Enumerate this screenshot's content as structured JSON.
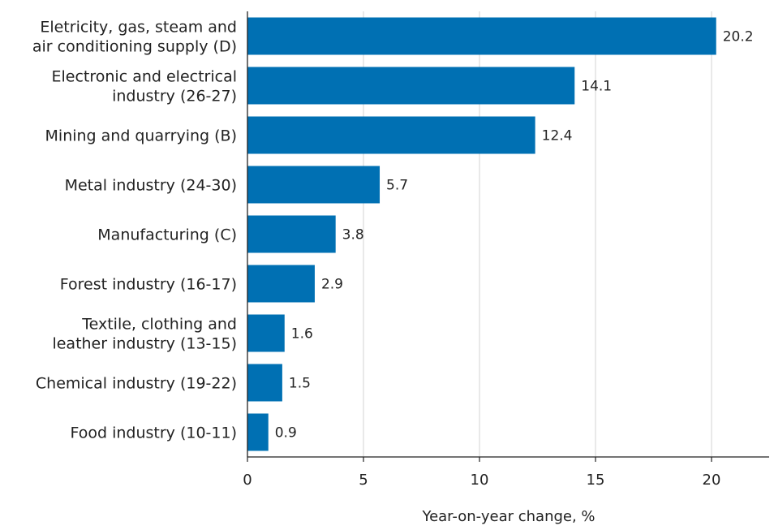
{
  "chart_data": {
    "type": "bar",
    "orientation": "horizontal",
    "categories": [
      [
        "Eletricity, gas, steam and",
        "air conditioning supply (D)"
      ],
      [
        "Electronic and electrical",
        "industry (26-27)"
      ],
      [
        "Mining and quarrying (B)"
      ],
      [
        "Metal industry (24-30)"
      ],
      [
        "Manufacturing (C)"
      ],
      [
        "Forest industry (16-17)"
      ],
      [
        "Textile, clothing and",
        "leather industry (13-15)"
      ],
      [
        "Chemical industry (19-22)"
      ],
      [
        "Food industry (10-11)"
      ]
    ],
    "values": [
      20.2,
      14.1,
      12.4,
      5.7,
      3.8,
      2.9,
      1.6,
      1.5,
      0.9
    ],
    "value_labels": [
      "20.2",
      "14.1",
      "12.4",
      "5.7",
      "3.8",
      "2.9",
      "1.6",
      "1.5",
      "0.9"
    ],
    "xlabel": "Year-on-year change, %",
    "ylabel": "",
    "title": "",
    "xlim": [
      0,
      22.5
    ],
    "xticks": [
      0,
      5,
      10,
      15,
      20
    ],
    "xtick_labels": [
      "0",
      "5",
      "10",
      "15",
      "20"
    ],
    "grid": "vertical",
    "legend": "none",
    "colors": {
      "bar": "#0070b3",
      "grid": "#dddddd",
      "axis": "#222222"
    }
  }
}
